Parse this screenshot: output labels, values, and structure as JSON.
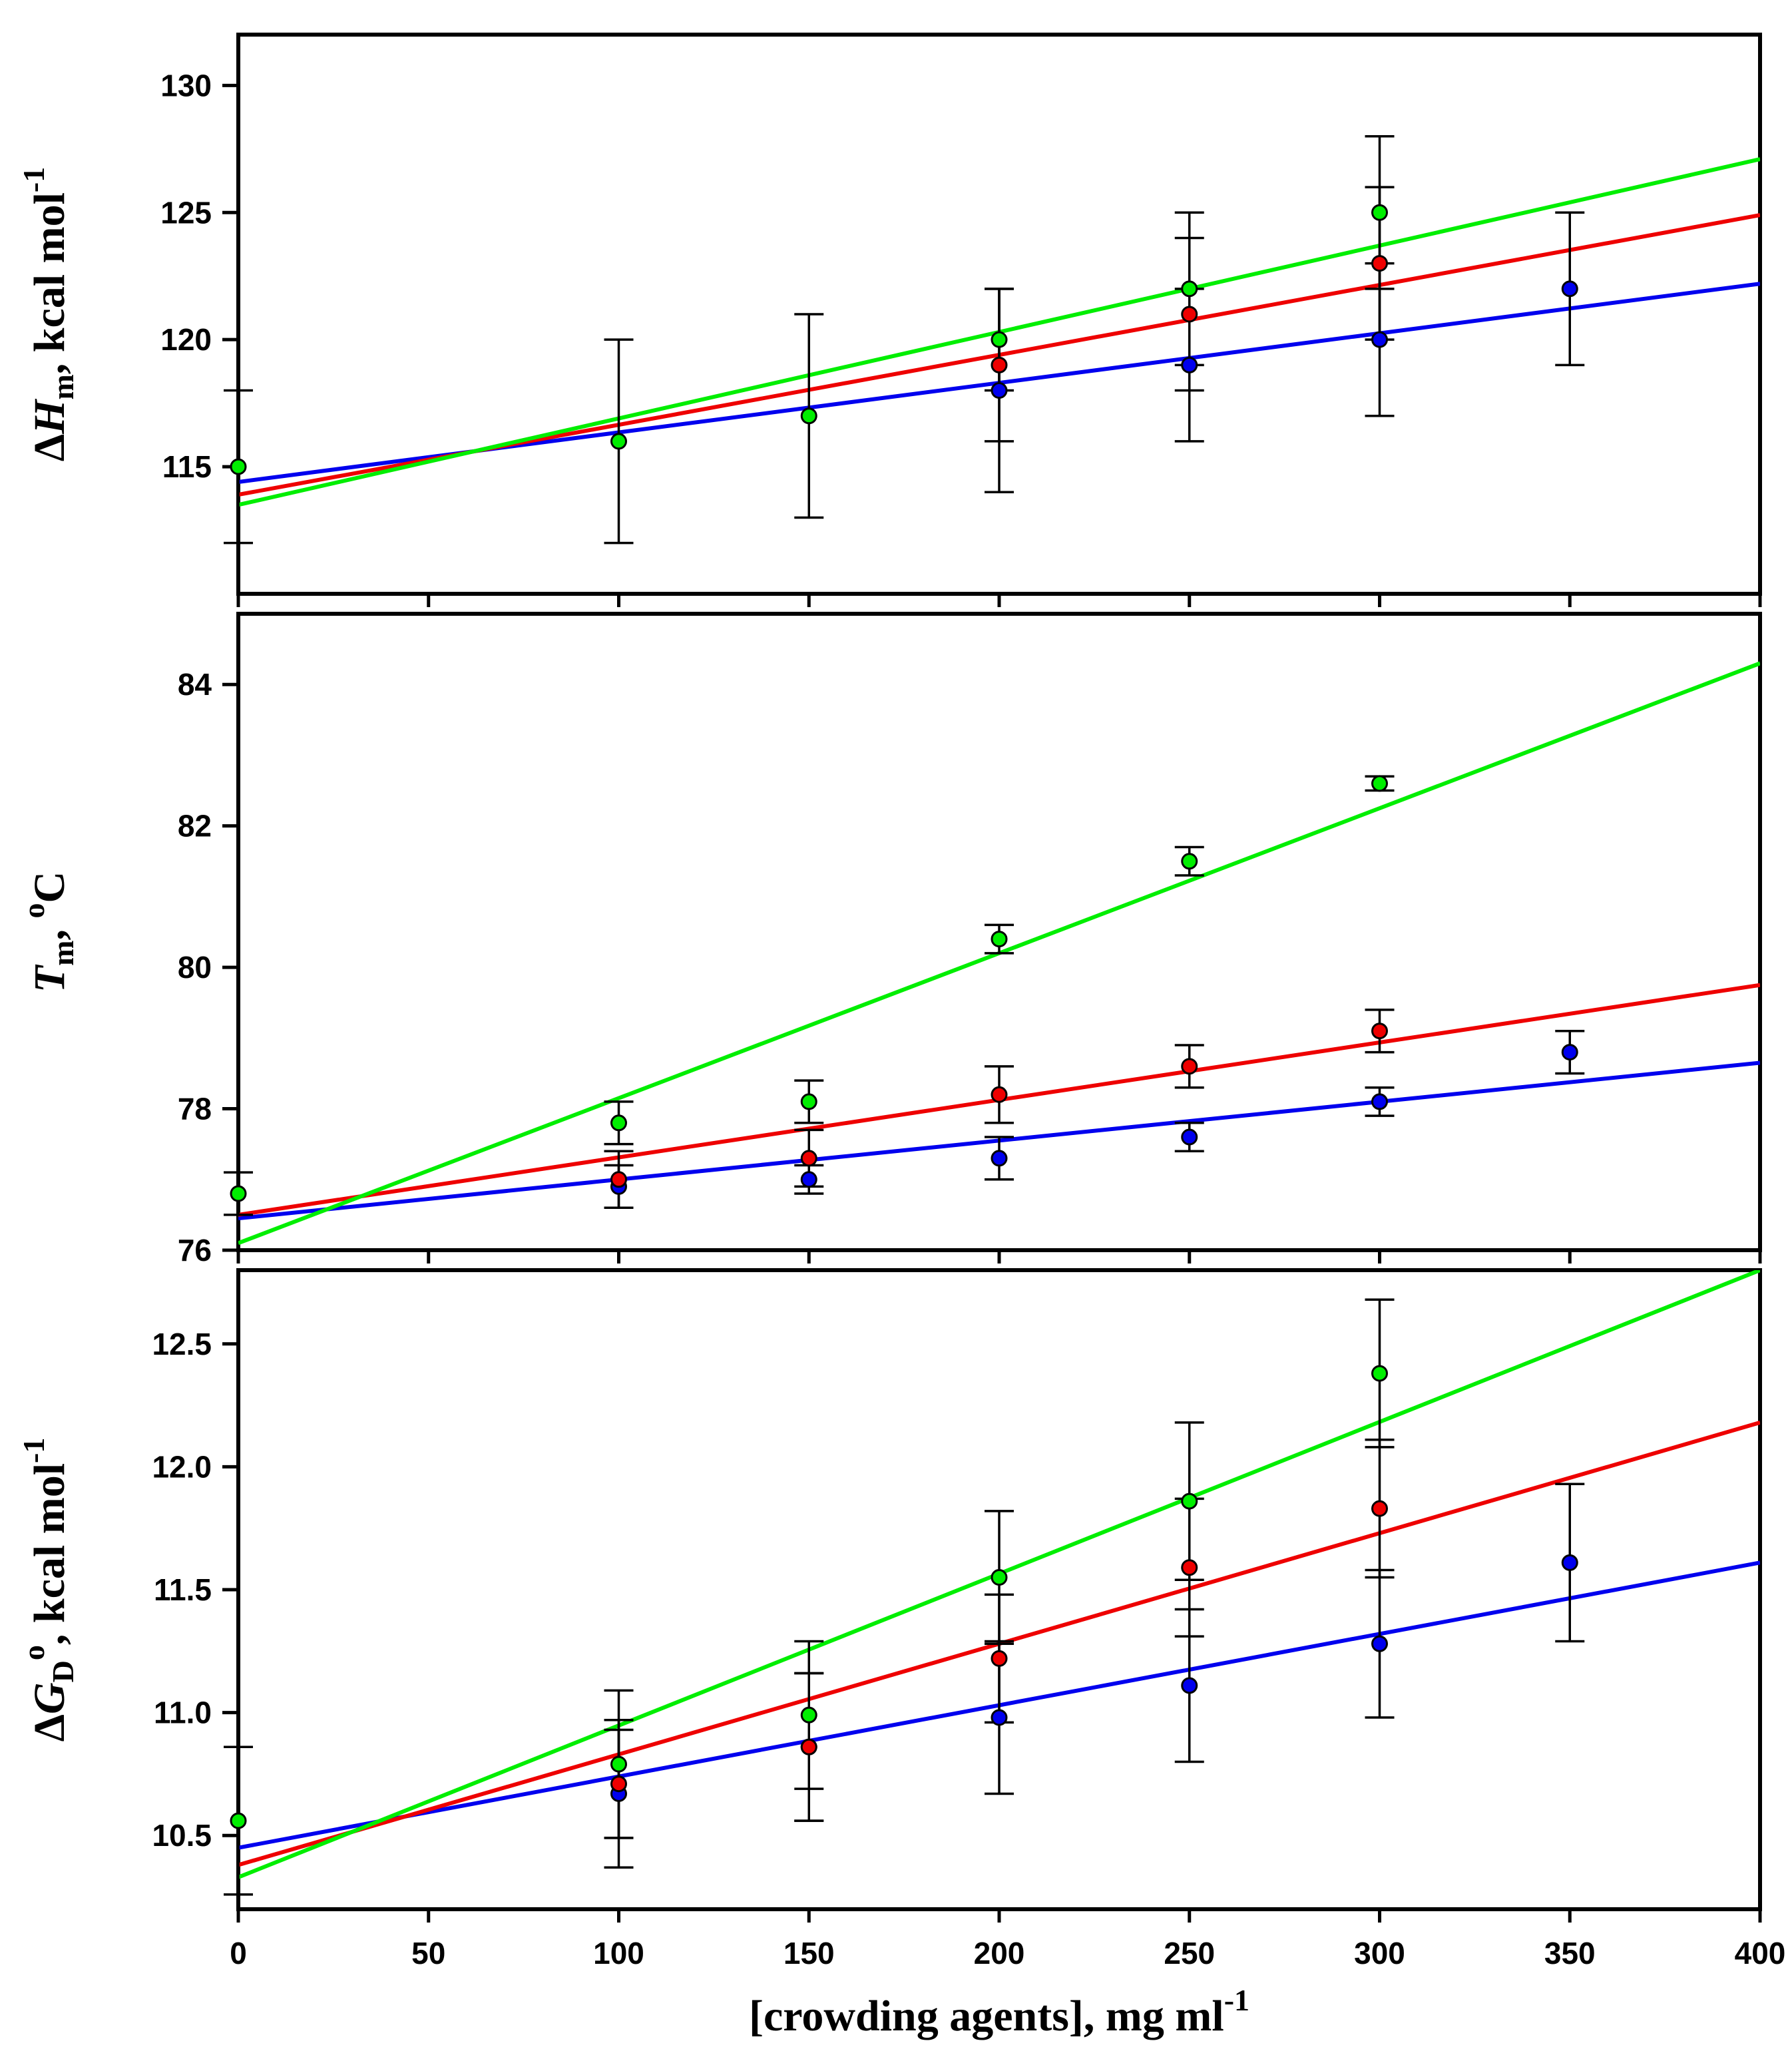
{
  "xaxis": {
    "label": "[crowding agents], mg ml",
    "label_sup": "-1",
    "range": [
      0,
      400
    ],
    "ticks": [
      0,
      50,
      100,
      150,
      200,
      250,
      300,
      350,
      400
    ]
  },
  "series_colors": {
    "green": "#00ee00",
    "red": "#ee0000",
    "blue": "#0000ee"
  },
  "chart_data": [
    {
      "type": "scatter",
      "panel": "top",
      "ylabel": {
        "prefix": "Δ",
        "var": "H",
        "sub": "m",
        "suffix": ", kcal mol",
        "sup": "-1"
      },
      "ylim": [
        110,
        132
      ],
      "yticks": [
        115,
        120,
        125,
        130
      ],
      "xlim": [
        0,
        400
      ],
      "series": [
        {
          "name": "green",
          "points": [
            {
              "x": 0,
              "y": 115,
              "err": 3
            },
            {
              "x": 100,
              "y": 116,
              "err": 4
            },
            {
              "x": 150,
              "y": 117,
              "err": 4
            },
            {
              "x": 200,
              "y": 120,
              "err": 2
            },
            {
              "x": 250,
              "y": 122,
              "err": 3
            },
            {
              "x": 300,
              "y": 125,
              "err": 3
            }
          ],
          "fit": [
            113.5,
            127.1
          ]
        },
        {
          "name": "red",
          "points": [
            {
              "x": 200,
              "y": 119,
              "err": 3
            },
            {
              "x": 250,
              "y": 121,
              "err": 3
            },
            {
              "x": 300,
              "y": 123,
              "err": 3
            }
          ],
          "fit": [
            113.9,
            124.9
          ]
        },
        {
          "name": "blue",
          "points": [
            {
              "x": 200,
              "y": 118,
              "err": 4
            },
            {
              "x": 250,
              "y": 119,
              "err": 3
            },
            {
              "x": 300,
              "y": 120,
              "err": 3
            },
            {
              "x": 350,
              "y": 122,
              "err": 3
            }
          ],
          "fit": [
            114.4,
            122.2
          ]
        }
      ]
    },
    {
      "type": "scatter",
      "panel": "middle",
      "ylabel": {
        "prefix": "",
        "var": "T",
        "sub": "m",
        "suffix": ", ",
        "deg": "o",
        "unit": "C"
      },
      "ylim": [
        76,
        85
      ],
      "yticks": [
        76,
        78,
        80,
        82,
        84
      ],
      "xlim": [
        0,
        400
      ],
      "series": [
        {
          "name": "green",
          "points": [
            {
              "x": 0,
              "y": 76.8,
              "err": 0.3
            },
            {
              "x": 100,
              "y": 77.8,
              "err": 0.3
            },
            {
              "x": 150,
              "y": 78.1,
              "err": 0.3
            },
            {
              "x": 200,
              "y": 80.4,
              "err": 0.2
            },
            {
              "x": 250,
              "y": 81.5,
              "err": 0.2
            },
            {
              "x": 300,
              "y": 82.6,
              "err": 0.1
            }
          ],
          "fit": [
            76.1,
            84.3
          ]
        },
        {
          "name": "red",
          "points": [
            {
              "x": 100,
              "y": 77.0,
              "err": 0.4
            },
            {
              "x": 150,
              "y": 77.3,
              "err": 0.4
            },
            {
              "x": 200,
              "y": 78.2,
              "err": 0.4
            },
            {
              "x": 250,
              "y": 78.6,
              "err": 0.3
            },
            {
              "x": 300,
              "y": 79.1,
              "err": 0.3
            }
          ],
          "fit": [
            76.5,
            79.75
          ]
        },
        {
          "name": "blue",
          "points": [
            {
              "x": 100,
              "y": 76.9,
              "err": 0.3
            },
            {
              "x": 150,
              "y": 77.0,
              "err": 0.2
            },
            {
              "x": 200,
              "y": 77.3,
              "err": 0.3
            },
            {
              "x": 250,
              "y": 77.6,
              "err": 0.2
            },
            {
              "x": 300,
              "y": 78.1,
              "err": 0.2
            },
            {
              "x": 350,
              "y": 78.8,
              "err": 0.3
            }
          ],
          "fit": [
            76.45,
            78.65
          ]
        }
      ]
    },
    {
      "type": "scatter",
      "panel": "bottom",
      "ylabel": {
        "prefix": "Δ",
        "var": "G",
        "sub": "D",
        "deg": "o",
        "suffix": ", kcal mol",
        "sup": "-1"
      },
      "ylim": [
        10.2,
        12.8
      ],
      "yticks": [
        10.5,
        11.0,
        11.5,
        12.0,
        12.5
      ],
      "xlim": [
        0,
        400
      ],
      "series": [
        {
          "name": "green",
          "points": [
            {
              "x": 0,
              "y": 10.56,
              "err": 0.3
            },
            {
              "x": 100,
              "y": 10.79,
              "err": 0.3
            },
            {
              "x": 150,
              "y": 10.99,
              "err": 0.3
            },
            {
              "x": 200,
              "y": 11.55,
              "err": 0.27
            },
            {
              "x": 250,
              "y": 11.86,
              "err": 0.32
            },
            {
              "x": 300,
              "y": 12.38,
              "err": 0.3
            }
          ],
          "fit": [
            10.33,
            12.8
          ]
        },
        {
          "name": "red",
          "points": [
            {
              "x": 100,
              "y": 10.71,
              "err": 0.22
            },
            {
              "x": 150,
              "y": 10.86,
              "err": 0.3
            },
            {
              "x": 200,
              "y": 11.22,
              "err": 0.26
            },
            {
              "x": 250,
              "y": 11.59,
              "err": 0.28
            },
            {
              "x": 300,
              "y": 11.83,
              "err": 0.28
            }
          ],
          "fit": [
            10.38,
            12.18
          ]
        },
        {
          "name": "blue",
          "points": [
            {
              "x": 100,
              "y": 10.67,
              "err": 0.3
            },
            {
              "x": 150,
              "y": 10.86,
              "err": 0.3
            },
            {
              "x": 200,
              "y": 10.98,
              "err": 0.31
            },
            {
              "x": 250,
              "y": 11.11,
              "err": 0.31
            },
            {
              "x": 300,
              "y": 11.28,
              "err": 0.3
            },
            {
              "x": 350,
              "y": 11.61,
              "err": 0.32
            }
          ],
          "fit": [
            10.45,
            11.61
          ]
        }
      ]
    }
  ]
}
